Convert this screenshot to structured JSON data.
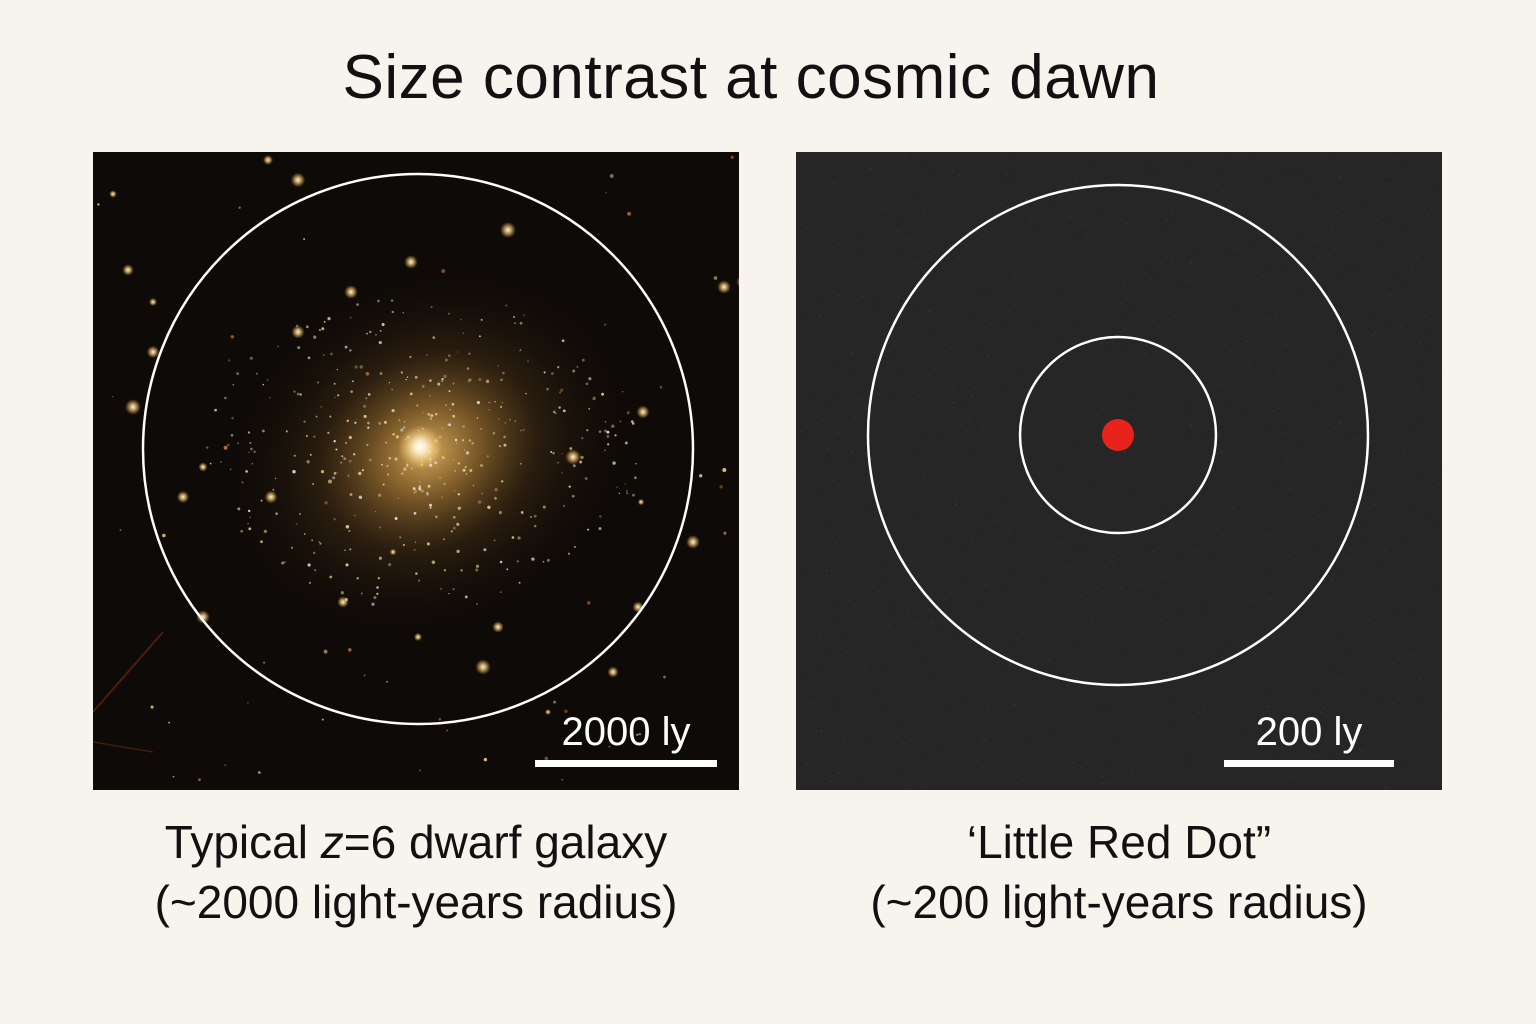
{
  "title": "Size contrast at cosmic dawn",
  "panels": {
    "left": {
      "scale_label": "2000 ly",
      "caption_prefix": "Typical ",
      "caption_var": "z",
      "caption_suffix": "=6 dwarf galaxy",
      "caption_line2": "(~2000 light-years radius)"
    },
    "right": {
      "scale_label": "200 ly",
      "caption_line1": "‘Little Red Dot”",
      "caption_line2": "(~200 light-years radius)"
    }
  },
  "colors": {
    "dot": "#e8231b",
    "ring": "#ffffff",
    "galaxy_glow": "#b8893f"
  }
}
